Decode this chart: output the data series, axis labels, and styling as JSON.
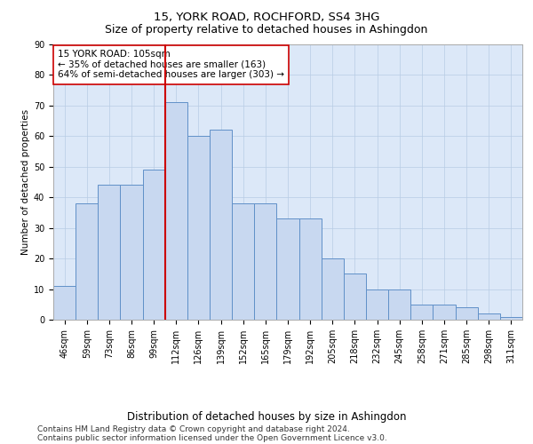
{
  "title": "15, YORK ROAD, ROCHFORD, SS4 3HG",
  "subtitle": "Size of property relative to detached houses in Ashingdon",
  "xlabel": "Distribution of detached houses by size in Ashingdon",
  "ylabel": "Number of detached properties",
  "bar_labels": [
    "46sqm",
    "59sqm",
    "73sqm",
    "86sqm",
    "99sqm",
    "112sqm",
    "126sqm",
    "139sqm",
    "152sqm",
    "165sqm",
    "179sqm",
    "192sqm",
    "205sqm",
    "218sqm",
    "232sqm",
    "245sqm",
    "258sqm",
    "271sqm",
    "285sqm",
    "298sqm",
    "311sqm"
  ],
  "bar_values": [
    11,
    38,
    44,
    44,
    49,
    71,
    60,
    62,
    38,
    38,
    33,
    33,
    20,
    15,
    10,
    10,
    5,
    5,
    4,
    2,
    1
  ],
  "bar_color": "#c8d8f0",
  "bar_edgecolor": "#6090c8",
  "vline_x": 5.0,
  "vline_color": "#cc0000",
  "annotation_text": "15 YORK ROAD: 105sqm\n← 35% of detached houses are smaller (163)\n64% of semi-detached houses are larger (303) →",
  "annotation_box_edgecolor": "#cc0000",
  "annotation_box_facecolor": "#ffffff",
  "ylim": [
    0,
    90
  ],
  "yticks": [
    0,
    10,
    20,
    30,
    40,
    50,
    60,
    70,
    80,
    90
  ],
  "footer_line1": "Contains HM Land Registry data © Crown copyright and database right 2024.",
  "footer_line2": "Contains public sector information licensed under the Open Government Licence v3.0.",
  "bg_color": "#dce8f8",
  "fig_bg_color": "#ffffff",
  "title_fontsize": 9.5,
  "subtitle_fontsize": 9,
  "xlabel_fontsize": 8.5,
  "ylabel_fontsize": 7.5,
  "tick_fontsize": 7,
  "annotation_fontsize": 7.5,
  "footer_fontsize": 6.5
}
